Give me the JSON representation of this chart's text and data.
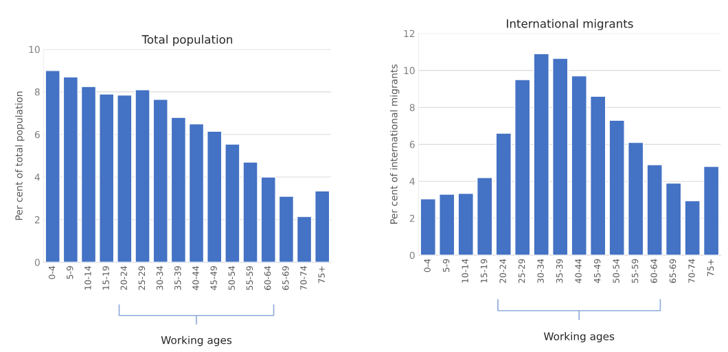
{
  "chart_data": [
    {
      "type": "bar",
      "title": "Total population",
      "ylabel": "Per cent of total population",
      "categories": [
        "0-4",
        "5-9",
        "10-14",
        "15-19",
        "20-24",
        "25-29",
        "30-34",
        "35-39",
        "40-44",
        "45-49",
        "50-54",
        "55-59",
        "60-64",
        "65-69",
        "70-74",
        "75+"
      ],
      "values": [
        9.0,
        8.7,
        8.25,
        7.9,
        7.85,
        8.1,
        7.65,
        6.8,
        6.5,
        6.15,
        5.55,
        4.7,
        4.0,
        3.1,
        2.15,
        3.35
      ],
      "color": "#4472c4",
      "ylim": [
        0,
        10
      ],
      "yticks": [
        0,
        2,
        4,
        6,
        8,
        10
      ],
      "grid": "y",
      "annotations": [
        "Working ages"
      ]
    },
    {
      "type": "bar",
      "title": "International migrants",
      "ylabel": "Per cent of international migrants",
      "categories": [
        "0-4",
        "5-9",
        "10-14",
        "15-19",
        "20-24",
        "25-29",
        "30-34",
        "35-39",
        "40-44",
        "45-49",
        "50-54",
        "55-59",
        "60-64",
        "65-69",
        "70-74",
        "75+"
      ],
      "values": [
        3.05,
        3.3,
        3.35,
        4.2,
        6.6,
        9.5,
        10.9,
        10.65,
        9.7,
        8.6,
        7.3,
        6.1,
        4.9,
        3.9,
        2.95,
        4.8
      ],
      "color": "#4472c4",
      "ylim": [
        0,
        12
      ],
      "yticks": [
        0,
        2,
        4,
        6,
        8,
        10,
        12
      ],
      "grid": "y",
      "annotations": [
        "Working ages"
      ]
    }
  ]
}
